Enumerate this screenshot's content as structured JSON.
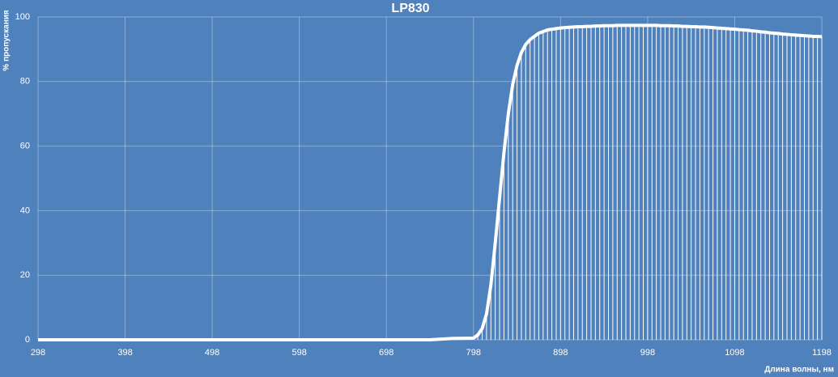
{
  "chart_data": {
    "type": "line",
    "title": "LP830",
    "x_label": "Длина волны, нм",
    "y_label": "% пропускания",
    "x": [
      298,
      323,
      348,
      373,
      398,
      423,
      448,
      473,
      498,
      523,
      548,
      573,
      598,
      623,
      648,
      673,
      698,
      723,
      748,
      773,
      798,
      803,
      808,
      813,
      818,
      823,
      828,
      833,
      838,
      843,
      848,
      853,
      858,
      863,
      868,
      873,
      878,
      883,
      888,
      893,
      898,
      903,
      908,
      913,
      918,
      923,
      928,
      933,
      938,
      943,
      948,
      953,
      958,
      963,
      968,
      973,
      978,
      983,
      988,
      993,
      998,
      1003,
      1008,
      1013,
      1018,
      1023,
      1028,
      1033,
      1038,
      1043,
      1048,
      1053,
      1058,
      1063,
      1068,
      1073,
      1078,
      1083,
      1088,
      1093,
      1098,
      1103,
      1108,
      1113,
      1118,
      1123,
      1128,
      1133,
      1138,
      1143,
      1148,
      1153,
      1158,
      1163,
      1168,
      1173,
      1178,
      1183,
      1188,
      1193,
      1198
    ],
    "series": [
      {
        "name": "LP830",
        "color": "#ffffff",
        "values": [
          0,
          0,
          0,
          0,
          0,
          0,
          0,
          0,
          0,
          0,
          0,
          0,
          0,
          0,
          0,
          0,
          0,
          0,
          0,
          0.4,
          0.5,
          1.5,
          3.5,
          8,
          17,
          30,
          44,
          58,
          70,
          79,
          85,
          89,
          91.5,
          93,
          94,
          95,
          95.5,
          96,
          96.2,
          96.4,
          96.6,
          96.7,
          96.8,
          96.9,
          97,
          97,
          97.1,
          97.1,
          97.2,
          97.2,
          97.3,
          97.3,
          97.3,
          97.4,
          97.4,
          97.4,
          97.4,
          97.4,
          97.4,
          97.4,
          97.4,
          97.4,
          97.4,
          97.3,
          97.3,
          97.3,
          97.2,
          97.2,
          97.1,
          97.1,
          97,
          97,
          96.9,
          96.9,
          96.8,
          96.7,
          96.6,
          96.5,
          96.4,
          96.3,
          96.2,
          96.1,
          96,
          95.9,
          95.7,
          95.6,
          95.4,
          95.3,
          95.1,
          95,
          94.9,
          94.7,
          94.6,
          94.5,
          94.4,
          94.3,
          94.2,
          94.1,
          94,
          94,
          93.9
        ]
      }
    ],
    "drop_lines": true,
    "xlim": [
      298,
      1198
    ],
    "xticks": [
      298,
      398,
      498,
      598,
      698,
      798,
      898,
      998,
      1098,
      1198
    ],
    "ylim": [
      0,
      100
    ],
    "yticks": [
      0,
      20,
      40,
      60,
      80,
      100
    ],
    "grid": true
  }
}
